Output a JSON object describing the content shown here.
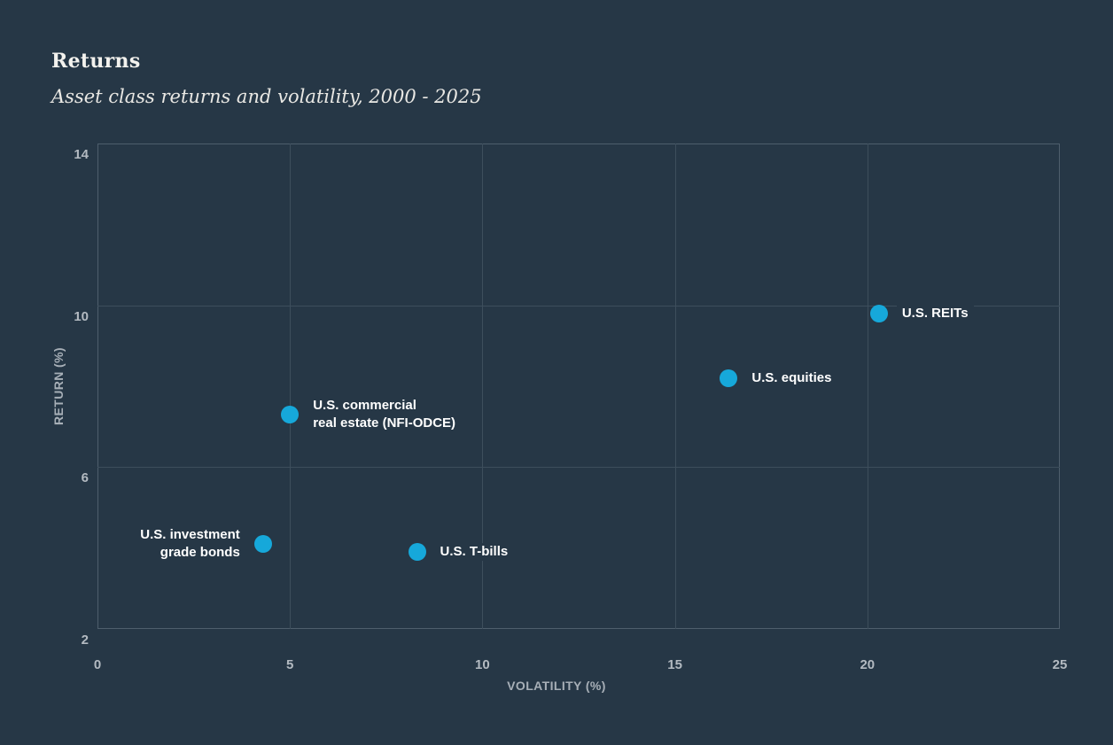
{
  "colors": {
    "background": "#263746",
    "point": "#16a8da",
    "grid": "#3d4e5c",
    "plot_border": "#4e5e6c",
    "tick_text": "#b3bac1",
    "label_text": "#ffffff"
  },
  "chart_data": {
    "type": "scatter",
    "title": "Returns",
    "subtitle": "Asset class returns and volatility, 2000 - 2025",
    "xlabel": "VOLATILITY (%)",
    "ylabel": "RETURN (%)",
    "xlim": [
      0,
      25
    ],
    "ylim": [
      2,
      14
    ],
    "x_ticks": [
      0,
      5,
      10,
      15,
      20,
      25
    ],
    "y_ticks": [
      2,
      6,
      10,
      14
    ],
    "grid": true,
    "legend_position": "none",
    "points": [
      {
        "name": "U.S. REITs",
        "label_lines": [
          "U.S. REITs"
        ],
        "x": 20.3,
        "y": 9.8,
        "label_side": "right"
      },
      {
        "name": "U.S. equities",
        "label_lines": [
          "U.S. equities"
        ],
        "x": 16.4,
        "y": 8.2,
        "label_side": "right"
      },
      {
        "name": "U.S. commercial real estate (NFI-ODCE)",
        "label_lines": [
          "U.S. commercial",
          "real estate (NFI-ODCE)"
        ],
        "x": 5.0,
        "y": 7.3,
        "label_side": "right"
      },
      {
        "name": "U.S. T-bills",
        "label_lines": [
          "U.S. T-bills"
        ],
        "x": 8.3,
        "y": 3.9,
        "label_side": "right"
      },
      {
        "name": "U.S. investment grade bonds",
        "label_lines": [
          "U.S. investment",
          "grade bonds"
        ],
        "x": 4.3,
        "y": 4.1,
        "label_side": "left"
      }
    ]
  }
}
